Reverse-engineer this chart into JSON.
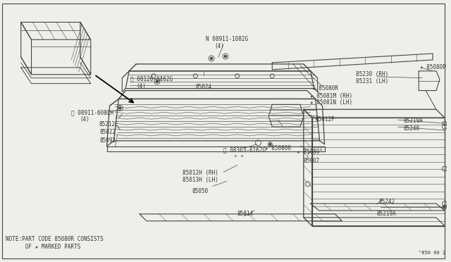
{
  "bg_color": "#efefea",
  "line_color": "#444444",
  "text_color": "#333333",
  "fig_width": 6.4,
  "fig_height": 3.72,
  "note_line1": "NOTE:PART CODE 85080R CONSISTS",
  "note_line2": "      OF ★ MARKED PARTS",
  "bottom_ref": "^850 00 2"
}
